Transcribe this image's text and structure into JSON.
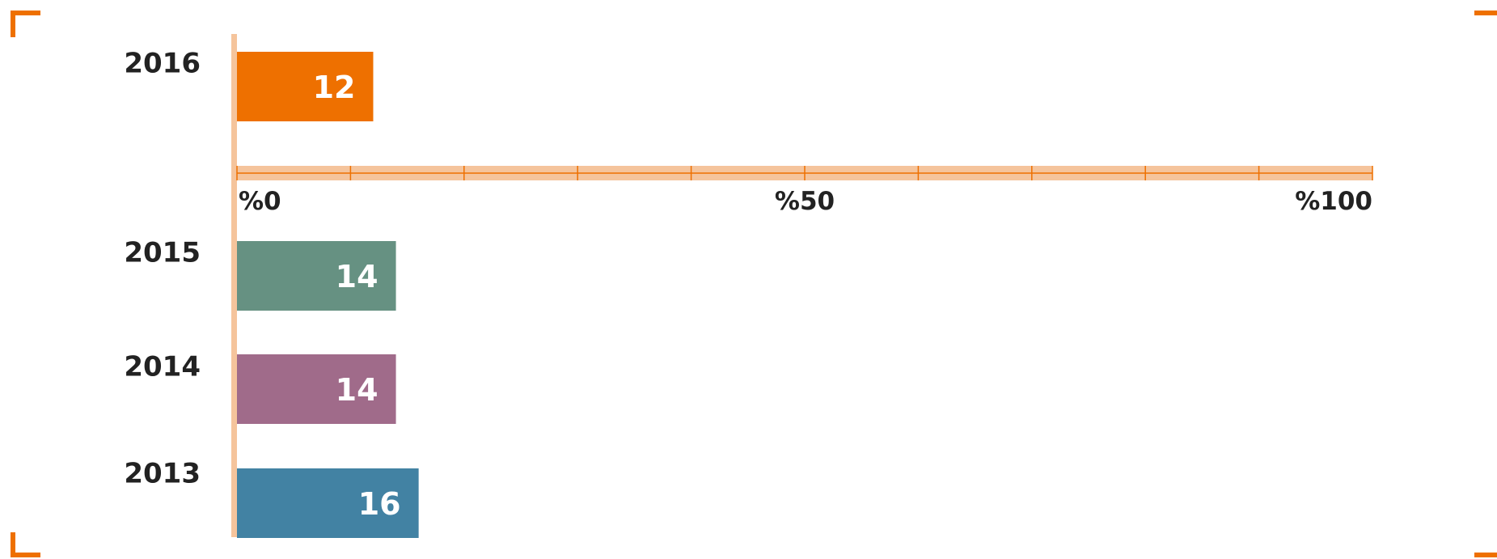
{
  "chart_data": {
    "type": "bar",
    "orientation": "horizontal",
    "categories": [
      "2016",
      "2015",
      "2014",
      "2013"
    ],
    "values": [
      12,
      14,
      14,
      16
    ],
    "value_labels": [
      "12",
      "14",
      "14",
      "16"
    ],
    "bar_colors": [
      "#ee7000",
      "#669182",
      "#a06b8a",
      "#4282a3"
    ],
    "axis_color": "#f5c49c",
    "axis_tick_color": "#ee7000",
    "corner_color": "#ee7000",
    "xlim": [
      0,
      100
    ],
    "x_tick_count": 10,
    "x_tick_labels": [
      "%0",
      "%50",
      "%100"
    ],
    "x_tick_label_values": [
      0,
      50,
      100
    ],
    "title": "",
    "xlabel": "",
    "ylabel": "",
    "grid": false,
    "legend": "none"
  }
}
